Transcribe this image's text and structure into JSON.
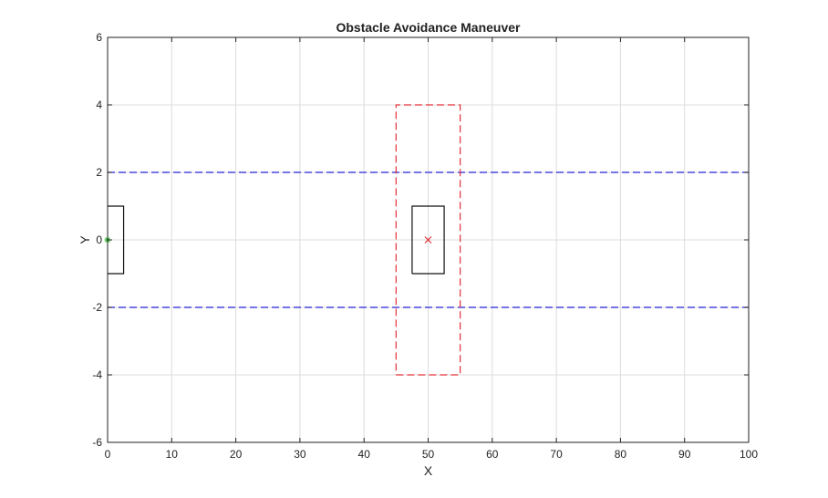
{
  "chart_data": {
    "type": "line",
    "title": "Obstacle Avoidance Maneuver",
    "xlabel": "X",
    "ylabel": "Y",
    "xlim": [
      0,
      100
    ],
    "ylim": [
      -6,
      6
    ],
    "x_ticks": [
      0,
      10,
      20,
      30,
      40,
      50,
      60,
      70,
      80,
      90,
      100
    ],
    "y_ticks": [
      -6,
      -4,
      -2,
      0,
      2,
      4,
      6
    ],
    "grid": true,
    "legend": "none",
    "series": [
      {
        "style": "dashed",
        "color": "#2323d6",
        "x": [
          0,
          100
        ],
        "y": [
          2,
          2
        ]
      },
      {
        "style": "dashed",
        "color": "#2323d6",
        "x": [
          0,
          100
        ],
        "y": [
          -2,
          -2
        ]
      },
      {
        "style": "dashed",
        "color": "#e3313a",
        "x": [
          45,
          55,
          55,
          45,
          45
        ],
        "y": [
          -4,
          -4,
          4,
          4,
          -4
        ]
      },
      {
        "style": "solid",
        "color": "#111111",
        "x": [
          -2.5,
          2.5,
          2.5,
          -2.5,
          -2.5
        ],
        "y": [
          -1,
          -1,
          1,
          1,
          -1
        ]
      },
      {
        "style": "solid",
        "color": "#111111",
        "x": [
          47.5,
          52.5,
          52.5,
          47.5,
          47.5
        ],
        "y": [
          -1,
          -1,
          1,
          1,
          -1
        ]
      }
    ],
    "markers": [
      {
        "marker": "*",
        "color": "#2ebd2e",
        "x": 0,
        "y": 0
      },
      {
        "marker": "x",
        "color": "#e3313a",
        "x": 50,
        "y": 0
      }
    ]
  }
}
